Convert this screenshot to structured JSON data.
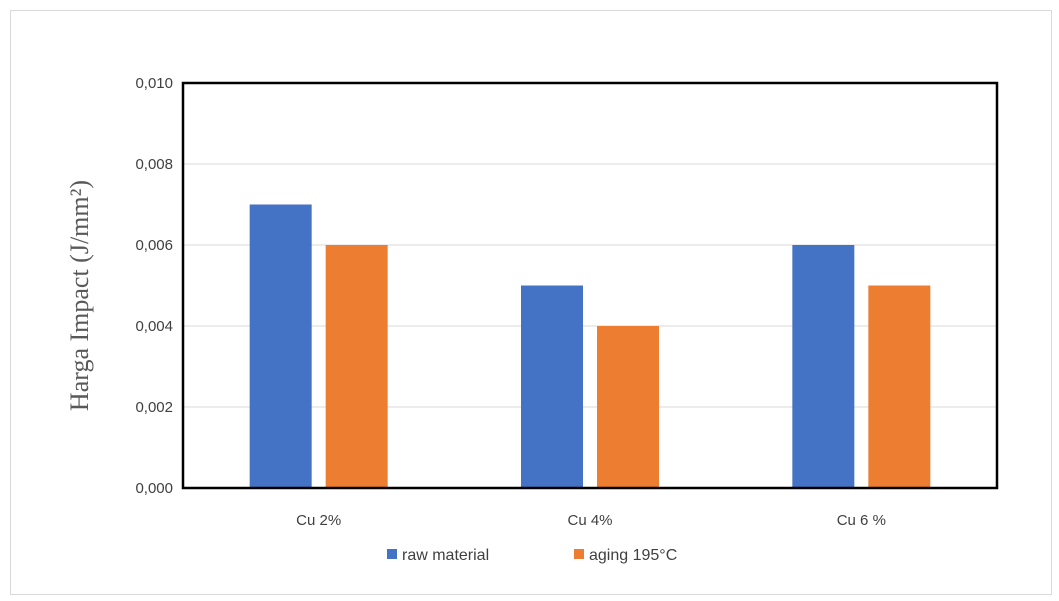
{
  "chart_data": {
    "type": "bar",
    "categories": [
      "Cu 2%",
      "Cu 4%",
      "Cu 6 %"
    ],
    "series": [
      {
        "name": "raw material",
        "values": [
          0.007,
          0.005,
          0.006
        ],
        "color": "#4472c4"
      },
      {
        "name": "aging 195°C",
        "values": [
          0.006,
          0.004,
          0.005
        ],
        "color": "#ed7d31"
      }
    ],
    "title": "",
    "xlabel": "",
    "ylabel": "Harga Impact (J/mm²)",
    "ylim": [
      0,
      0.01
    ],
    "yticks": [
      "0,000",
      "0,002",
      "0,004",
      "0,006",
      "0,008",
      "0,010"
    ],
    "grid": true,
    "legend_position": "bottom"
  }
}
